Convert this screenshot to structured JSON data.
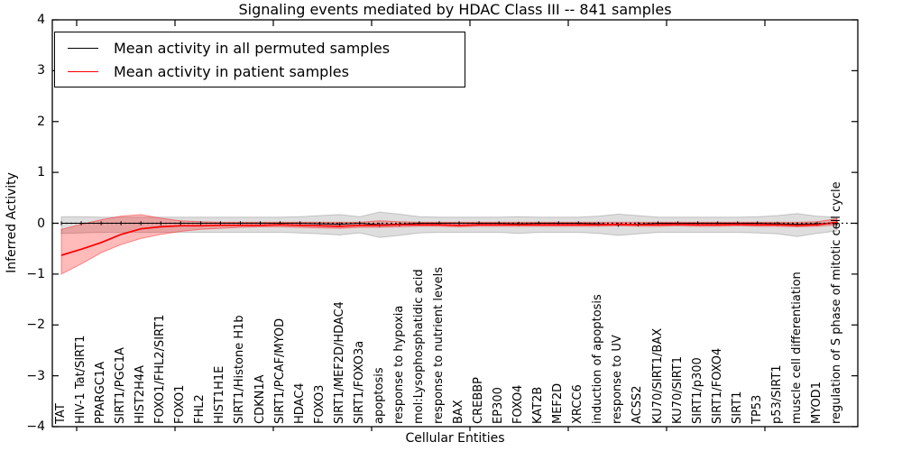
{
  "title": "Signaling events mediated by HDAC Class III -- 841 samples",
  "legend": {
    "items": [
      {
        "label": "Mean activity in all permuted samples",
        "color": "#000000"
      },
      {
        "label": "Mean activity in patient samples",
        "color": "#ff0000"
      }
    ]
  },
  "axes": {
    "ytick_labels": [
      "4",
      "3",
      "2",
      "1",
      "0",
      "−1",
      "−2",
      "−3",
      "−4"
    ],
    "ytick_values": [
      4,
      3,
      2,
      1,
      0,
      -1,
      -2,
      -3,
      -4
    ]
  },
  "chart_data": {
    "type": "line",
    "title": "Signaling events mediated by HDAC Class III -- 841 samples",
    "xlabel": "Cellular Entities",
    "ylabel": "Inferred Activity",
    "ylim": [
      -4,
      4
    ],
    "grid": false,
    "legend_position": "upper left",
    "x_tick_label_rotation": 90,
    "zero_line": {
      "style": "dotted",
      "color": "#000000"
    },
    "categories": [
      "TAT",
      "HIV-1 Tat/SIRT1",
      "PPARGC1A",
      "SIRT1/PGC1A",
      "HIST2H4A",
      "FOXO1/FHL2/SIRT1",
      "FOXO1",
      "FHL2",
      "HIST1H1E",
      "SIRT1/Histone H1b",
      "CDKN1A",
      "SIRT1/PCAF/MYOD",
      "HDAC4",
      "FOXO3",
      "SIRT1/MEF2D/HDAC4",
      "SIRT1/FOXO3a",
      "apoptosis",
      "response to hypoxia",
      "mol:Lysophosphatidic acid",
      "response to nutrient levels",
      "BAX",
      "CREBBP",
      "EP300",
      "FOXO4",
      "KAT2B",
      "MEF2D",
      "XRCC6",
      "induction of apoptosis",
      "response to UV",
      "ACSS2",
      "KU70/SIRT1/BAX",
      "KU70/SIRT1",
      "SIRT1/p300",
      "SIRT1/FOXO4",
      "SIRT1",
      "TP53",
      "p53/SIRT1",
      "muscle cell differentiation",
      "MYOD1",
      "regulation of S phase of mitotic cell cycle"
    ],
    "series": [
      {
        "name": "Mean activity in all permuted samples",
        "color": "#000000",
        "band_fill": "rgba(0,0,0,0.13)",
        "band_edge": "rgba(0,0,0,0.18)",
        "values": [
          0,
          0,
          0,
          0,
          0,
          0,
          0,
          0,
          0,
          0,
          0,
          0,
          0,
          -0.01,
          -0.02,
          0,
          -0.03,
          -0.02,
          0,
          0,
          0,
          0,
          0,
          -0.01,
          0,
          0,
          0,
          -0.01,
          -0.03,
          -0.02,
          0,
          0,
          0,
          0,
          0,
          0,
          -0.01,
          -0.02,
          -0.01,
          0
        ],
        "band_upper": [
          0.13,
          0.13,
          0.12,
          0.12,
          0.12,
          0.12,
          0.12,
          0.12,
          0.12,
          0.12,
          0.12,
          0.12,
          0.13,
          0.15,
          0.17,
          0.13,
          0.22,
          0.18,
          0.13,
          0.12,
          0.12,
          0.12,
          0.12,
          0.13,
          0.12,
          0.12,
          0.12,
          0.14,
          0.18,
          0.15,
          0.12,
          0.12,
          0.12,
          0.12,
          0.12,
          0.13,
          0.15,
          0.19,
          0.14,
          0.12
        ],
        "band_lower": [
          -0.2,
          -0.19,
          -0.18,
          -0.18,
          -0.18,
          -0.18,
          -0.18,
          -0.18,
          -0.18,
          -0.18,
          -0.18,
          -0.18,
          -0.19,
          -0.21,
          -0.23,
          -0.19,
          -0.28,
          -0.24,
          -0.19,
          -0.18,
          -0.18,
          -0.18,
          -0.18,
          -0.2,
          -0.18,
          -0.18,
          -0.18,
          -0.2,
          -0.24,
          -0.21,
          -0.18,
          -0.18,
          -0.18,
          -0.18,
          -0.18,
          -0.19,
          -0.21,
          -0.26,
          -0.2,
          -0.15
        ]
      },
      {
        "name": "Mean activity in patient samples",
        "color": "#ff0000",
        "band_fill": "rgba(255,0,0,0.27)",
        "band_edge": "rgba(255,0,0,0.40)",
        "values": [
          -0.63,
          -0.51,
          -0.38,
          -0.22,
          -0.11,
          -0.07,
          -0.05,
          -0.05,
          -0.04,
          -0.04,
          -0.04,
          -0.03,
          -0.04,
          -0.05,
          -0.06,
          -0.04,
          -0.04,
          -0.03,
          -0.03,
          -0.03,
          -0.04,
          -0.03,
          -0.03,
          -0.03,
          -0.03,
          -0.03,
          -0.03,
          -0.03,
          -0.02,
          -0.03,
          -0.03,
          -0.02,
          -0.03,
          -0.03,
          -0.02,
          -0.03,
          -0.03,
          -0.04,
          -0.03,
          0.02
        ],
        "band_upper": [
          -0.12,
          -0.02,
          0.07,
          0.14,
          0.17,
          0.1,
          0.05,
          0.03,
          0.02,
          0.02,
          0.02,
          0.02,
          0.02,
          0.02,
          0.02,
          0.02,
          0.05,
          0.03,
          0.02,
          0.02,
          0.02,
          0.02,
          0.02,
          0.02,
          0.02,
          0.02,
          0.02,
          0.02,
          0.02,
          0.02,
          0.02,
          0.02,
          0.02,
          0.02,
          0.02,
          0.02,
          0.02,
          0.02,
          0.03,
          0.09
        ],
        "band_lower": [
          -1.0,
          -0.8,
          -0.58,
          -0.42,
          -0.3,
          -0.22,
          -0.16,
          -0.12,
          -0.1,
          -0.08,
          -0.07,
          -0.07,
          -0.08,
          -0.09,
          -0.1,
          -0.08,
          -0.08,
          -0.07,
          -0.06,
          -0.06,
          -0.07,
          -0.06,
          -0.06,
          -0.06,
          -0.06,
          -0.06,
          -0.06,
          -0.06,
          -0.05,
          -0.06,
          -0.06,
          -0.05,
          -0.06,
          -0.06,
          -0.05,
          -0.06,
          -0.06,
          -0.07,
          -0.06,
          -0.03
        ]
      }
    ]
  }
}
